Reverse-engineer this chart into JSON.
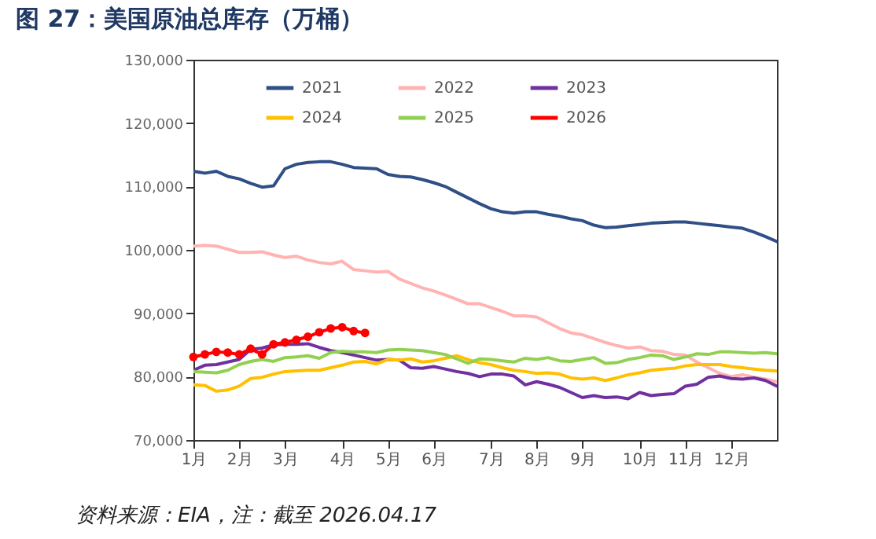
{
  "chart_data": {
    "type": "line",
    "title": "图 27：美国原油总库存（万桶）",
    "annotations": [
      "资料来源：EIA，注：截至 2026.04.17"
    ],
    "categories": [
      "1月",
      null,
      null,
      null,
      "2月",
      null,
      null,
      null,
      "3月",
      null,
      null,
      null,
      null,
      "4月",
      null,
      null,
      null,
      "5月",
      null,
      null,
      null,
      "6月",
      null,
      null,
      null,
      null,
      "7月",
      null,
      null,
      null,
      "8月",
      null,
      null,
      null,
      "9月",
      null,
      null,
      null,
      null,
      "10月",
      null,
      null,
      null,
      "11月",
      null,
      null,
      null,
      "12月",
      null,
      null,
      null,
      null
    ],
    "ylim": [
      70000,
      130000
    ],
    "yticks": [
      {
        "value": 70000,
        "label": "70,000"
      },
      {
        "value": 80000,
        "label": "80,000"
      },
      {
        "value": 90000,
        "label": "90,000"
      },
      {
        "value": 100000,
        "label": "100,000"
      },
      {
        "value": 110000,
        "label": "110,000"
      },
      {
        "value": 120000,
        "label": "120,000"
      },
      {
        "value": 130000,
        "label": "130,000"
      }
    ],
    "grid": false,
    "legend": "top",
    "marker": "none",
    "series": [
      {
        "name": "2021",
        "color": "#2f4f86",
        "values": [
          112400,
          112100,
          112400,
          111600,
          111200,
          110500,
          109900,
          110100,
          112800,
          113500,
          113800,
          113900,
          113900,
          113500,
          113000,
          112900,
          112800,
          111900,
          111600,
          111500,
          111100,
          110600,
          110000,
          109100,
          108200,
          107300,
          106500,
          106000,
          105800,
          106000,
          106000,
          105600,
          105300,
          104900,
          104600,
          103900,
          103500,
          103600,
          103800,
          104000,
          104200,
          104300,
          104400,
          104400,
          104200,
          104000,
          103800,
          103600,
          103400,
          102800,
          102100,
          101300
        ]
      },
      {
        "name": "2022",
        "color": "#ffb3b3",
        "values": [
          100600,
          100700,
          100600,
          100100,
          99600,
          99600,
          99700,
          99200,
          98800,
          99000,
          98400,
          98000,
          97800,
          98200,
          96900,
          96700,
          96500,
          96600,
          95400,
          94700,
          94000,
          93500,
          92900,
          92200,
          91500,
          91500,
          90900,
          90300,
          89600,
          89600,
          89400,
          88500,
          87600,
          86900,
          86600,
          86000,
          85400,
          84900,
          84500,
          84700,
          84100,
          84000,
          83500,
          83400,
          82300,
          81400,
          80500,
          80000,
          80300,
          79900,
          79600,
          79200
        ]
      },
      {
        "name": "2023",
        "color": "#7030a0",
        "values": [
          81000,
          81800,
          81900,
          82300,
          82700,
          84300,
          84500,
          85000,
          85100,
          85100,
          85200,
          84600,
          84100,
          83800,
          83400,
          83000,
          82600,
          82700,
          82600,
          81400,
          81300,
          81600,
          81200,
          80800,
          80500,
          80000,
          80400,
          80400,
          80100,
          78700,
          79200,
          78800,
          78300,
          77500,
          76700,
          77000,
          76700,
          76800,
          76500,
          77500,
          77000,
          77200,
          77300,
          78500,
          78800,
          79900,
          80100,
          79700,
          79600,
          79800,
          79400,
          78500
        ]
      },
      {
        "name": "2024",
        "color": "#ffc000",
        "values": [
          78700,
          78600,
          77700,
          77900,
          78500,
          79700,
          79900,
          80400,
          80800,
          80900,
          81000,
          81000,
          81400,
          81800,
          82300,
          82400,
          82000,
          82700,
          82600,
          82800,
          82300,
          82500,
          82900,
          83300,
          82700,
          82200,
          81900,
          81400,
          81000,
          80800,
          80500,
          80600,
          80400,
          79800,
          79600,
          79800,
          79400,
          79800,
          80300,
          80600,
          81000,
          81200,
          81300,
          81700,
          81900,
          81900,
          81900,
          81600,
          81400,
          81200,
          81000,
          80900
        ]
      },
      {
        "name": "2025",
        "color": "#92d050",
        "values": [
          80800,
          80700,
          80600,
          81000,
          81900,
          82400,
          82700,
          82400,
          83000,
          83100,
          83300,
          82900,
          83800,
          84000,
          83900,
          83900,
          83800,
          84200,
          84300,
          84200,
          84100,
          83800,
          83500,
          82800,
          82100,
          82800,
          82700,
          82500,
          82300,
          82900,
          82700,
          83000,
          82500,
          82400,
          82700,
          83000,
          82100,
          82200,
          82700,
          83000,
          83400,
          83300,
          82700,
          83100,
          83600,
          83500,
          83900,
          83900,
          83800,
          83700,
          83800,
          83600
        ]
      },
      {
        "name": "2026",
        "color": "#ff0000",
        "marker": "circle",
        "values": [
          83100,
          83500,
          83900,
          83800,
          83500,
          84400,
          83500,
          85100,
          85400,
          85800,
          86300,
          87000,
          87600,
          87800,
          87200,
          86900,
          null,
          null,
          null,
          null,
          null,
          null,
          null,
          null,
          null,
          null,
          null,
          null,
          null,
          null,
          null,
          null,
          null,
          null,
          null,
          null,
          null,
          null,
          null,
          null,
          null,
          null,
          null,
          null,
          null,
          null,
          null,
          null,
          null,
          null,
          null,
          null
        ]
      }
    ]
  }
}
